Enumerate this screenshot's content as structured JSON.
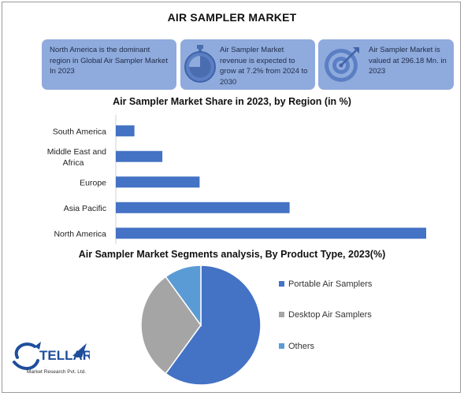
{
  "header": {
    "title": "AIR SAMPLER MARKET"
  },
  "cards": [
    {
      "text": "North America is the dominant region in Global Air Sampler Market In 2023"
    },
    {
      "text": "Air Sampler Market revenue is expected to grow at 7.2% from 2024 to 2030",
      "icon": "stopwatch-icon"
    },
    {
      "text": "Air Sampler Market is valued at 296.18 Mn. in 2023",
      "icon": "target-icon"
    }
  ],
  "colors": {
    "card": "#8faadc",
    "bar": "#4472c4",
    "portable": "#4472c4",
    "desktop": "#a5a5a5",
    "others": "#5b9bd5"
  },
  "chart_data": [
    {
      "type": "bar",
      "orientation": "horizontal",
      "title": "Air Sampler Market Share in 2023, by Region (in %)",
      "categories": [
        "South America",
        "Middle East and Africa",
        "Europe",
        "Asia Pacific",
        "North America"
      ],
      "category_lines": [
        [
          "South America"
        ],
        [
          "Middle East and",
          "Africa"
        ],
        [
          "Europe"
        ],
        [
          "Asia Pacific"
        ],
        [
          "North America"
        ]
      ],
      "values": [
        6,
        15,
        27,
        56,
        100
      ],
      "xlim": [
        0,
        100
      ],
      "grid": false,
      "legend": "none"
    },
    {
      "type": "pie",
      "title": "Air Sampler Market Segments analysis, By Product Type, 2023(%)",
      "labels": [
        "Portable Air Samplers",
        "Desktop Air Samplers",
        "Others"
      ],
      "values": [
        60,
        30,
        10
      ],
      "legend": "right"
    }
  ],
  "logo": {
    "name": "STELLAR",
    "tagline": "Market Research Pvt. Ltd."
  }
}
